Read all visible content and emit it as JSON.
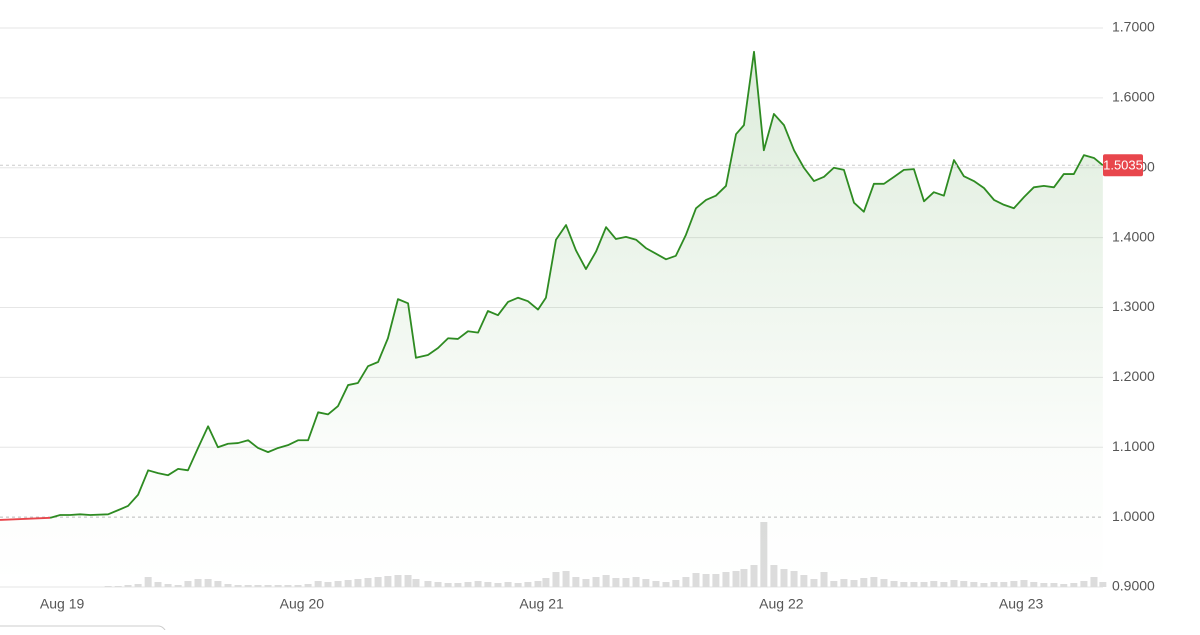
{
  "chart_data": {
    "type": "line",
    "x": [
      -0.259,
      -0.05,
      -0.008,
      0.033,
      0.075,
      0.117,
      0.192,
      0.234,
      0.275,
      0.317,
      0.359,
      0.4,
      0.442,
      0.484,
      0.525,
      0.567,
      0.609,
      0.65,
      0.692,
      0.734,
      0.776,
      0.817,
      0.859,
      0.901,
      0.942,
      0.984,
      1.026,
      1.068,
      1.109,
      1.151,
      1.193,
      1.234,
      1.276,
      1.318,
      1.359,
      1.401,
      1.443,
      1.476,
      1.526,
      1.568,
      1.61,
      1.651,
      1.693,
      1.735,
      1.776,
      1.818,
      1.86,
      1.902,
      1.943,
      1.985,
      2.018,
      2.06,
      2.102,
      2.143,
      2.185,
      2.227,
      2.269,
      2.31,
      2.352,
      2.394,
      2.435,
      2.477,
      2.519,
      2.56,
      2.602,
      2.644,
      2.686,
      2.727,
      2.769,
      2.811,
      2.844,
      2.886,
      2.927,
      2.969,
      3.011,
      3.053,
      3.094,
      3.136,
      3.178,
      3.219,
      3.261,
      3.303,
      3.344,
      3.386,
      3.428,
      3.47,
      3.511,
      3.553,
      3.595,
      3.636,
      3.678,
      3.72,
      3.761,
      3.803,
      3.845,
      3.887,
      3.928,
      3.97,
      4.012,
      4.053,
      4.095,
      4.137,
      4.178,
      4.22,
      4.262,
      4.304,
      4.341
    ],
    "series": [
      {
        "color": "#2e8b22",
        "down_color": "#e8464c",
        "values": [
          0.996,
          0.999,
          1.003,
          1.003,
          1.004,
          1.003,
          1.004,
          1.01,
          1.016,
          1.032,
          1.067,
          1.063,
          1.06,
          1.069,
          1.067,
          1.099,
          1.13,
          1.1,
          1.105,
          1.106,
          1.11,
          1.099,
          1.093,
          1.099,
          1.103,
          1.11,
          1.11,
          1.15,
          1.147,
          1.159,
          1.189,
          1.192,
          1.216,
          1.222,
          1.256,
          1.312,
          1.306,
          1.228,
          1.232,
          1.242,
          1.256,
          1.255,
          1.266,
          1.264,
          1.295,
          1.289,
          1.308,
          1.314,
          1.309,
          1.297,
          1.314,
          1.397,
          1.418,
          1.382,
          1.355,
          1.38,
          1.415,
          1.398,
          1.401,
          1.397,
          1.385,
          1.377,
          1.369,
          1.374,
          1.404,
          1.442,
          1.454,
          1.46,
          1.474,
          1.548,
          1.561,
          1.666,
          1.525,
          1.577,
          1.561,
          1.525,
          1.5,
          1.481,
          1.487,
          1.5,
          1.497,
          1.45,
          1.437,
          1.477,
          1.477,
          1.487,
          1.497,
          1.498,
          1.452,
          1.465,
          1.46,
          1.511,
          1.488,
          1.481,
          1.471,
          1.454,
          1.447,
          1.442,
          1.458,
          1.472,
          1.474,
          1.472,
          1.491,
          1.491,
          1.518,
          1.514,
          1.5035
        ]
      }
    ],
    "volume": [
      0,
      0,
      0,
      0,
      0,
      0,
      1,
      1,
      2,
      3,
      10,
      5,
      3,
      2,
      6,
      8,
      8,
      6,
      3,
      2,
      2,
      2,
      2,
      2,
      2,
      2,
      3,
      6,
      5,
      6,
      7,
      8,
      9,
      10,
      11,
      12,
      12,
      8,
      6,
      5,
      4,
      4,
      5,
      6,
      5,
      4,
      5,
      4,
      5,
      6,
      9,
      15,
      16,
      10,
      8,
      10,
      12,
      9,
      9,
      10,
      8,
      6,
      5,
      7,
      10,
      14,
      13,
      13,
      15,
      16,
      18,
      22,
      65,
      22,
      18,
      16,
      12,
      8,
      15,
      6,
      8,
      7,
      9,
      10,
      8,
      6,
      5,
      5,
      5,
      6,
      5,
      7,
      6,
      5,
      4,
      5,
      5,
      6,
      7,
      5,
      4,
      4,
      3,
      4,
      6,
      10,
      5
    ],
    "volume_color": "#dcdcdc",
    "reference_value": 1,
    "xlim": [
      -0.259,
      4.35
    ],
    "xticks": [
      {
        "value": 0,
        "label": "Aug 19"
      },
      {
        "value": 1,
        "label": "Aug 20"
      },
      {
        "value": 2,
        "label": "Aug 21"
      },
      {
        "value": 3,
        "label": "Aug 22"
      },
      {
        "value": 4,
        "label": "Aug 23"
      }
    ],
    "ylim": [
      0.9,
      1.7
    ],
    "yticks": [
      {
        "value": 0.9,
        "label": "0.9000"
      },
      {
        "value": 1,
        "label": "1.0000"
      },
      {
        "value": 1.1,
        "label": "1.1000"
      },
      {
        "value": 1.2,
        "label": "1.2000"
      },
      {
        "value": 1.3,
        "label": "1.3000"
      },
      {
        "value": 1.4,
        "label": "1.4000"
      },
      {
        "value": 1.5,
        "label": "1.5000"
      },
      {
        "value": 1.6,
        "label": "1.6000"
      },
      {
        "value": 1.7,
        "label": "1.7000"
      }
    ],
    "grid": true
  }
}
